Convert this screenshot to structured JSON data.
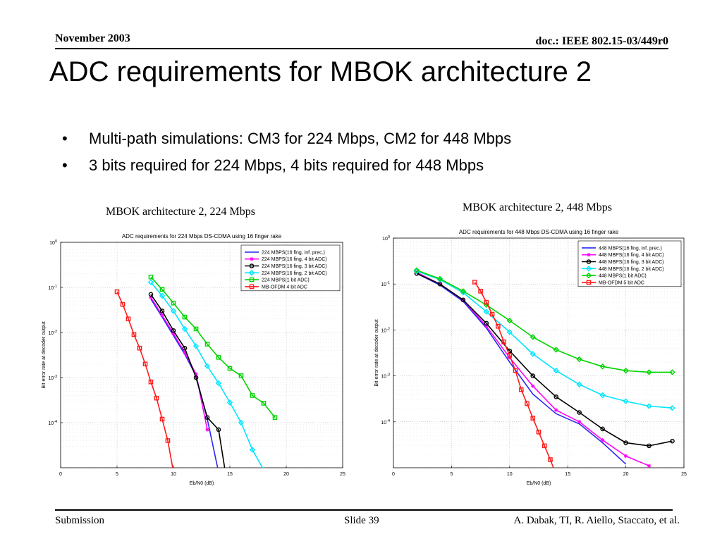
{
  "header": {
    "date": "November 2003",
    "doc_id": "doc.: IEEE 802.15-03/449r0"
  },
  "slide": {
    "title": "ADC requirements for MBOK architecture 2",
    "bullets": [
      "Multi-path simulations: CM3 for 224 Mbps, CM2 for 448 Mbps",
      "3 bits required for 224 Mbps, 4 bits required for 448 Mbps"
    ],
    "bullet_glyph": "•"
  },
  "captions": {
    "left": "MBOK architecture 2, 224 Mbps",
    "right": "MBOK architecture 2, 448 Mbps"
  },
  "footer": {
    "left": "Submission",
    "center": "Slide 39",
    "right": "A. Dabak, TI, R. Aiello, Staccato, et al."
  },
  "chart_data": [
    {
      "type": "line",
      "title": "ADC requirements for 224 Mbps DS-CDMA using 16 finger rake",
      "xlabel": "Eb/N0 (dB)",
      "ylabel": "Bit error rate at decoder output",
      "xlim": [
        0,
        25
      ],
      "xticks": [
        0,
        5,
        10,
        15,
        20,
        25
      ],
      "ylim": [
        1e-05,
        1
      ],
      "yscale": "log",
      "yticks": [
        {
          "value": 1,
          "base": "10",
          "exp": "0"
        },
        {
          "value": 0.1,
          "base": "10",
          "exp": "-1"
        },
        {
          "value": 0.01,
          "base": "10",
          "exp": "-2"
        },
        {
          "value": 0.001,
          "base": "10",
          "exp": "-3"
        },
        {
          "value": 0.0001,
          "base": "10",
          "exp": "-4"
        }
      ],
      "grid": true,
      "legend_position": "top-right",
      "series": [
        {
          "name": "224 MBPS(16 fing, inf. prec.)",
          "color": "#2a2af0",
          "marker": "none",
          "x": [
            8,
            9,
            10,
            11,
            12,
            13,
            14
          ],
          "y": [
            0.055,
            0.022,
            0.0085,
            0.0033,
            0.0011,
            0.00012,
            8e-06
          ]
        },
        {
          "name": "224 MBPS(16 fing, 4 bit ADC)",
          "color": "#ff00ff",
          "marker": "star",
          "x": [
            8,
            9,
            10,
            11,
            12,
            13
          ],
          "y": [
            0.06,
            0.024,
            0.0095,
            0.0036,
            0.0012,
            7e-05
          ]
        },
        {
          "name": "224 MBPS(16 fing, 3 bit ADC)",
          "color": "#000000",
          "marker": "circle",
          "x": [
            8,
            9,
            10,
            11,
            12,
            13,
            14,
            14.6
          ],
          "y": [
            0.07,
            0.03,
            0.011,
            0.0045,
            0.001,
            0.00013,
            7e-05,
            8e-06
          ]
        },
        {
          "name": "224 MBPS(16 fing, 2 bit ADC)",
          "color": "#00e5ff",
          "marker": "diamond",
          "x": [
            8,
            9,
            10,
            11,
            12,
            13,
            14,
            15,
            16,
            17,
            18
          ],
          "y": [
            0.13,
            0.065,
            0.03,
            0.012,
            0.005,
            0.0018,
            0.00075,
            0.00028,
            0.0001,
            2.5e-05,
            9e-06
          ]
        },
        {
          "name": "224 MBPS(1 bit ADC)",
          "color": "#00d400",
          "marker": "square",
          "x": [
            8,
            9,
            10,
            11,
            12,
            13,
            14,
            15,
            16,
            17,
            18,
            19
          ],
          "y": [
            0.17,
            0.09,
            0.045,
            0.022,
            0.012,
            0.0055,
            0.0028,
            0.0016,
            0.0011,
            0.0004,
            0.00027,
            0.00013
          ]
        },
        {
          "name": "MB-OFDM 4 bit ADC",
          "color": "#ff1a1a",
          "marker": "square",
          "x": [
            5,
            5.5,
            6,
            6.5,
            7,
            7.5,
            8,
            8.5,
            9,
            9.5,
            10
          ],
          "y": [
            0.08,
            0.042,
            0.02,
            0.009,
            0.0045,
            0.002,
            0.0008,
            0.00035,
            0.00012,
            4e-05,
            8e-06
          ]
        }
      ]
    },
    {
      "type": "line",
      "title": "ADC requirements for 448 Mbps DS-CDMA using 16 finger rake",
      "xlabel": "Eb/N0 (dB)",
      "ylabel": "Bit error rate at decoder output",
      "xlim": [
        0,
        25
      ],
      "xticks": [
        0,
        5,
        10,
        15,
        20,
        25
      ],
      "ylim": [
        1e-05,
        1
      ],
      "yscale": "log",
      "yticks": [
        {
          "value": 1,
          "base": "10",
          "exp": "0"
        },
        {
          "value": 0.1,
          "base": "10",
          "exp": "-1"
        },
        {
          "value": 0.01,
          "base": "10",
          "exp": "-2"
        },
        {
          "value": 0.001,
          "base": "10",
          "exp": "-3"
        },
        {
          "value": 0.0001,
          "base": "10",
          "exp": "-4"
        }
      ],
      "grid": true,
      "legend_position": "top-right",
      "series": [
        {
          "name": "448 MBPS(16 fing, inf. prec.)",
          "color": "#2a2af0",
          "marker": "none",
          "x": [
            2,
            4,
            6,
            8,
            10,
            12,
            14,
            16,
            18,
            20
          ],
          "y": [
            0.17,
            0.095,
            0.042,
            0.011,
            0.002,
            0.0004,
            0.00015,
            9e-05,
            3.5e-05,
            1.2e-05
          ]
        },
        {
          "name": "448 MBPS(16 fing, 4 bit ADC)",
          "color": "#ff00ff",
          "marker": "star",
          "x": [
            2,
            4,
            6,
            8,
            10,
            12,
            14,
            16,
            18,
            20,
            22
          ],
          "y": [
            0.18,
            0.1,
            0.045,
            0.012,
            0.0025,
            0.0006,
            0.00018,
            0.0001,
            4e-05,
            1.8e-05,
            1.1e-05
          ]
        },
        {
          "name": "448 MBPS(16 fing, 3 bit ADC)",
          "color": "#000000",
          "marker": "circle",
          "x": [
            2,
            4,
            6,
            8,
            10,
            12,
            14,
            16,
            18,
            20,
            22,
            24
          ],
          "y": [
            0.17,
            0.1,
            0.045,
            0.014,
            0.0035,
            0.001,
            0.00035,
            0.00016,
            7e-05,
            3.5e-05,
            3e-05,
            3.8e-05
          ]
        },
        {
          "name": "448 MBPS(16 fing, 2 bit ADC)",
          "color": "#00e5ff",
          "marker": "diamond",
          "x": [
            2,
            4,
            6,
            8,
            10,
            12,
            14,
            16,
            18,
            20,
            22,
            24
          ],
          "y": [
            0.19,
            0.125,
            0.065,
            0.025,
            0.009,
            0.003,
            0.0013,
            0.00065,
            0.00038,
            0.00028,
            0.00022,
            0.0002
          ]
        },
        {
          "name": "448 MBPS(1 bit ADC)",
          "color": "#00d400",
          "marker": "diamond",
          "x": [
            2,
            4,
            6,
            8,
            10,
            12,
            14,
            16,
            18,
            20,
            22,
            24
          ],
          "y": [
            0.2,
            0.13,
            0.07,
            0.035,
            0.016,
            0.007,
            0.0037,
            0.0023,
            0.0016,
            0.0013,
            0.0012,
            0.0012
          ]
        },
        {
          "name": "MB-OFDM 5 bit ADC",
          "color": "#ff1a1a",
          "marker": "square",
          "x": [
            7,
            7.5,
            8,
            8.5,
            9,
            9.5,
            10,
            10.5,
            11,
            11.5,
            12,
            12.5,
            13,
            13.5,
            14
          ],
          "y": [
            0.11,
            0.07,
            0.04,
            0.022,
            0.012,
            0.0055,
            0.0028,
            0.0013,
            0.0005,
            0.00025,
            0.00012,
            6e-05,
            3e-05,
            1.5e-05,
            7e-06
          ]
        }
      ]
    }
  ]
}
